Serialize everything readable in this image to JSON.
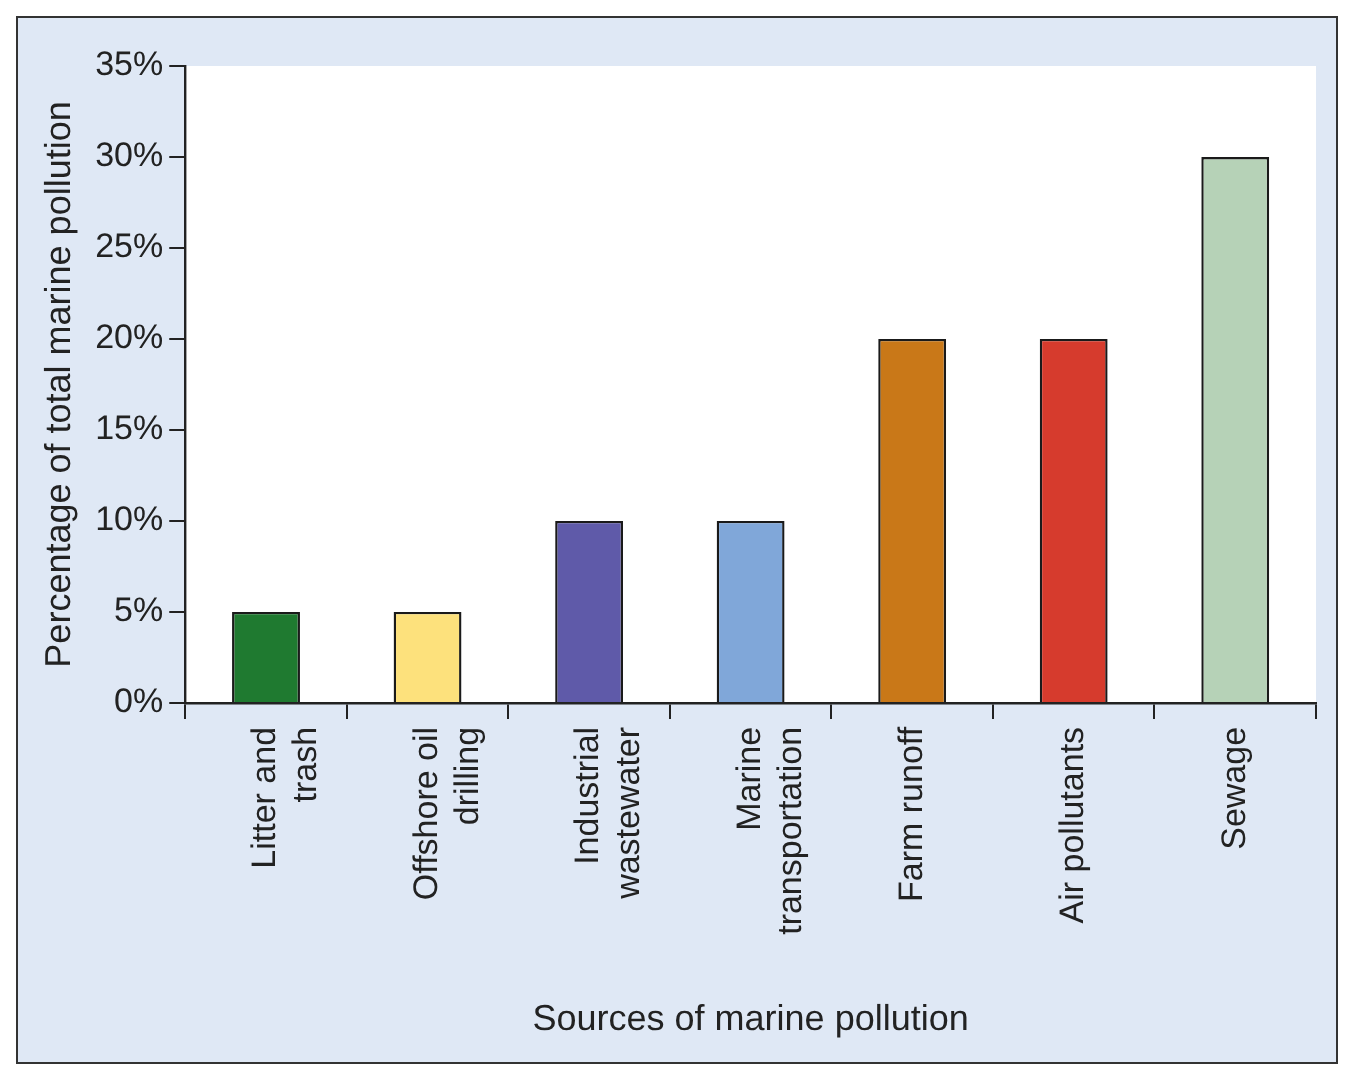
{
  "chart_data": {
    "type": "bar",
    "xlabel": "Sources of marine pollution",
    "ylabel": "Percentage of total marine pollution",
    "categories": [
      "Litter and trash",
      "Offshore oil drilling",
      "Industrial wastewater",
      "Marine transportation",
      "Farm runoff",
      "Air pollutants",
      "Sewage"
    ],
    "values": [
      5,
      5,
      10,
      10,
      20,
      20,
      30
    ],
    "colors": [
      "#1f7a30",
      "#fde17c",
      "#5f5aa9",
      "#80a7d9",
      "#c97818",
      "#d63b2d",
      "#b6d2b7"
    ],
    "ylim": [
      0,
      35
    ],
    "yticks": [
      {
        "value": 0,
        "label": "0%"
      },
      {
        "value": 5,
        "label": "5%"
      },
      {
        "value": 10,
        "label": "10%"
      },
      {
        "value": 15,
        "label": "15%"
      },
      {
        "value": 20,
        "label": "20%"
      },
      {
        "value": 25,
        "label": "25%"
      },
      {
        "value": 30,
        "label": "30%"
      },
      {
        "value": 35,
        "label": "35%"
      }
    ],
    "grid": false,
    "legend": false
  }
}
